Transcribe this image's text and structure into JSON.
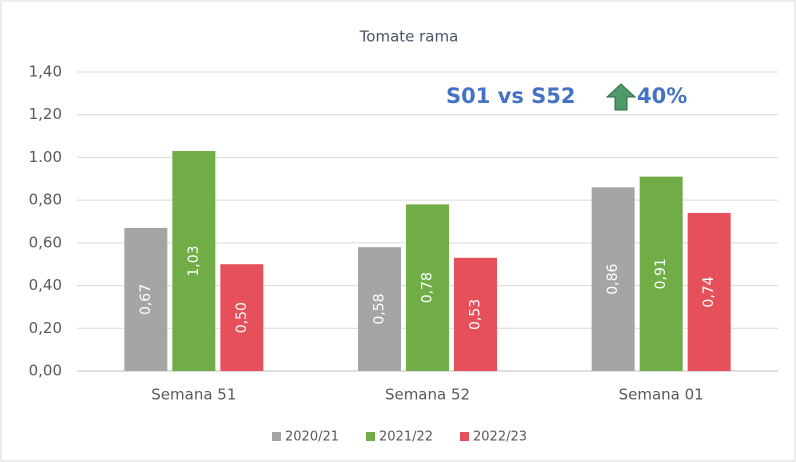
{
  "chart_data": {
    "type": "bar",
    "title": "Tomate rama",
    "categories": [
      "Semana 51",
      "Semana 52",
      "Semana 01"
    ],
    "series": [
      {
        "name": "2020/21",
        "color": "#a5a5a5",
        "values": [
          0.67,
          0.58,
          0.86
        ],
        "value_labels": [
          "0,67",
          "0,58",
          "0,86"
        ]
      },
      {
        "name": "2021/22",
        "color": "#70ad47",
        "values": [
          1.03,
          0.78,
          0.91
        ],
        "value_labels": [
          "1,03",
          "0,78",
          "0,91"
        ]
      },
      {
        "name": "2022/23",
        "color": "#e5505a",
        "values": [
          0.5,
          0.53,
          0.74
        ],
        "value_labels": [
          "0,50",
          "0,53",
          "0,74"
        ]
      }
    ],
    "ylim": [
      0,
      1.4
    ],
    "yticks": [
      {
        "value": 0,
        "label": "0,00"
      },
      {
        "value": 0.2,
        "label": "0,20"
      },
      {
        "value": 0.4,
        "label": "0,40"
      },
      {
        "value": 0.6,
        "label": "0,60"
      },
      {
        "value": 0.8,
        "label": "0,80"
      },
      {
        "value": 1.0,
        "label": "1.00"
      },
      {
        "value": 1.2,
        "label": "1,20"
      },
      {
        "value": 1.4,
        "label": "1,40"
      }
    ],
    "grid": true,
    "legend": "bottom",
    "annotations": [
      "S01 vs S52",
      "40%"
    ]
  }
}
